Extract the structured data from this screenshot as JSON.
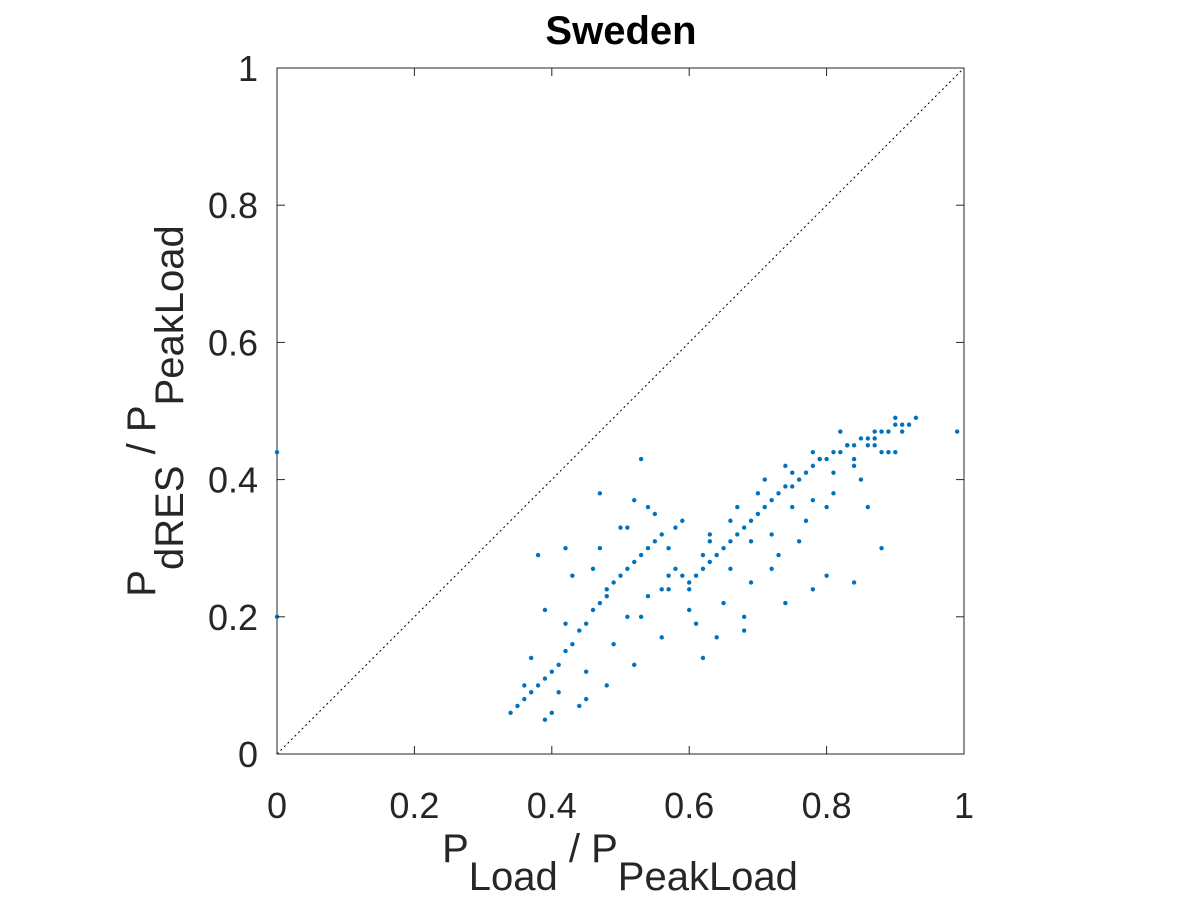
{
  "chart_data": {
    "type": "scatter",
    "title": "Sweden",
    "xlabel": {
      "main": "P",
      "sub": "Load",
      "sep": " / P",
      "sub2": "PeakLoad"
    },
    "ylabel": {
      "main": "P",
      "sub": "dRES",
      "sep": " / P",
      "sub2": "PeakLoad"
    },
    "xlim": [
      0,
      1
    ],
    "ylim": [
      0,
      1
    ],
    "xticks": [
      "0",
      "0.2",
      "0.4",
      "0.6",
      "0.8",
      "1"
    ],
    "yticks": [
      "0",
      "0.2",
      "0.4",
      "0.6",
      "0.8",
      "1"
    ],
    "xtick_values": [
      0,
      0.2,
      0.4,
      0.6,
      0.8,
      1
    ],
    "ytick_values": [
      0,
      0.2,
      0.4,
      0.6,
      0.8,
      1
    ],
    "grid": false,
    "reference_line": {
      "style": "dotted",
      "color": "#000000",
      "from": [
        0,
        0
      ],
      "to": [
        1,
        1
      ]
    },
    "marker_color": "#0072BD",
    "series": [
      {
        "x": [
          0.35,
          0.36,
          0.37,
          0.38,
          0.39,
          0.4,
          0.41,
          0.42,
          0.43,
          0.44,
          0.45,
          0.46,
          0.47,
          0.48,
          0.49,
          0.5,
          0.51,
          0.52,
          0.53,
          0.54,
          0.55,
          0.56,
          0.57,
          0.58,
          0.59,
          0.6,
          0.61,
          0.62,
          0.63,
          0.64,
          0.65,
          0.66,
          0.67,
          0.68,
          0.69,
          0.7,
          0.71,
          0.72,
          0.73,
          0.74,
          0.75,
          0.76,
          0.77,
          0.78,
          0.79,
          0.8,
          0.81,
          0.82,
          0.83,
          0.84,
          0.85,
          0.86,
          0.87,
          0.88,
          0.89,
          0.9,
          0.91,
          0.92,
          0.93,
          0.34,
          0.37,
          0.39,
          0.41,
          0.43,
          0.45,
          0.47,
          0.49,
          0.51,
          0.53,
          0.55,
          0.57,
          0.59,
          0.61,
          0.63,
          0.65,
          0.67,
          0.69,
          0.71,
          0.73,
          0.75,
          0.77,
          0.79,
          0.81,
          0.83,
          0.85,
          0.87,
          0.89,
          0.91,
          0.38,
          0.4,
          0.42,
          0.44,
          0.46,
          0.48,
          0.5,
          0.52,
          0.54,
          0.56,
          0.58,
          0.6,
          0.62,
          0.64,
          0.66,
          0.68,
          0.7,
          0.72,
          0.74,
          0.76,
          0.78,
          0.8,
          0.82,
          0.84,
          0.86,
          0.88,
          0.9,
          0.36,
          0.39,
          0.42,
          0.45,
          0.48,
          0.51,
          0.54,
          0.57,
          0.6,
          0.63,
          0.66,
          0.69,
          0.72,
          0.75,
          0.78,
          0.81,
          0.84,
          0.87,
          0.9,
          0.47,
          0.52,
          0.56,
          0.62,
          0.68,
          0.74,
          0.8,
          0.86,
          0.0,
          0.0,
          0.53,
          0.88,
          0.99,
          0.84,
          0.78
        ],
        "y": [
          0.07,
          0.08,
          0.09,
          0.1,
          0.11,
          0.12,
          0.13,
          0.15,
          0.16,
          0.18,
          0.19,
          0.21,
          0.22,
          0.24,
          0.25,
          0.26,
          0.27,
          0.28,
          0.29,
          0.3,
          0.31,
          0.32,
          0.3,
          0.27,
          0.26,
          0.25,
          0.26,
          0.27,
          0.28,
          0.29,
          0.3,
          0.31,
          0.32,
          0.33,
          0.34,
          0.35,
          0.36,
          0.37,
          0.38,
          0.39,
          0.39,
          0.4,
          0.41,
          0.42,
          0.43,
          0.43,
          0.44,
          0.44,
          0.45,
          0.45,
          0.46,
          0.46,
          0.47,
          0.47,
          0.47,
          0.48,
          0.48,
          0.48,
          0.49,
          0.06,
          0.14,
          0.21,
          0.09,
          0.26,
          0.12,
          0.3,
          0.16,
          0.33,
          0.2,
          0.35,
          0.24,
          0.34,
          0.19,
          0.31,
          0.22,
          0.36,
          0.25,
          0.4,
          0.29,
          0.41,
          0.34,
          0.43,
          0.38,
          0.45,
          0.4,
          0.46,
          0.44,
          0.47,
          0.29,
          0.06,
          0.19,
          0.07,
          0.27,
          0.1,
          0.33,
          0.13,
          0.36,
          0.17,
          0.33,
          0.21,
          0.29,
          0.17,
          0.34,
          0.2,
          0.38,
          0.27,
          0.42,
          0.31,
          0.44,
          0.36,
          0.47,
          0.42,
          0.45,
          0.44,
          0.49,
          0.1,
          0.05,
          0.3,
          0.08,
          0.23,
          0.2,
          0.23,
          0.26,
          0.24,
          0.32,
          0.27,
          0.31,
          0.32,
          0.36,
          0.37,
          0.41,
          0.43,
          0.45,
          0.44,
          0.38,
          0.37,
          0.24,
          0.14,
          0.18,
          0.22,
          0.26,
          0.36,
          0.44,
          0.2,
          0.43,
          0.3,
          0.47,
          0.25,
          0.24
        ]
      }
    ]
  }
}
